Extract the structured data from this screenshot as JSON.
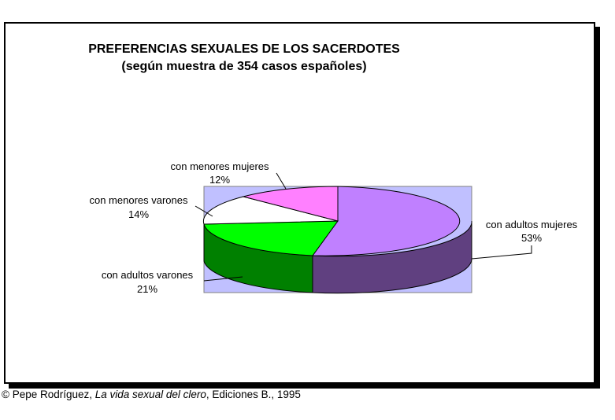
{
  "chart_data": {
    "type": "pie",
    "title": "PREFERENCIAS SEXUALES DE LOS SACERDOTES",
    "subtitle": "(según muestra de 354 casos españoles)",
    "slices": [
      {
        "label": "con adultos mujeres",
        "value": 53,
        "value_label": "53%",
        "color": "#c080ff",
        "side_color": "#604080"
      },
      {
        "label": "con adultos varones",
        "value": 21,
        "value_label": "21%",
        "color": "#00ff00",
        "side_color": "#008000"
      },
      {
        "label": "con menores varones",
        "value": 14,
        "value_label": "14%",
        "color": "#ffffff",
        "side_color": "#808080"
      },
      {
        "label": "con menores mujeres",
        "value": 12,
        "value_label": "12%",
        "color": "#ff80ff",
        "side_color": "#804080"
      }
    ],
    "plot_background": "#c0c0ff"
  },
  "credit": {
    "prefix": "© Pepe Rodríguez, ",
    "book": "La vida sexual del clero",
    "suffix": ", Ediciones B., 1995"
  }
}
